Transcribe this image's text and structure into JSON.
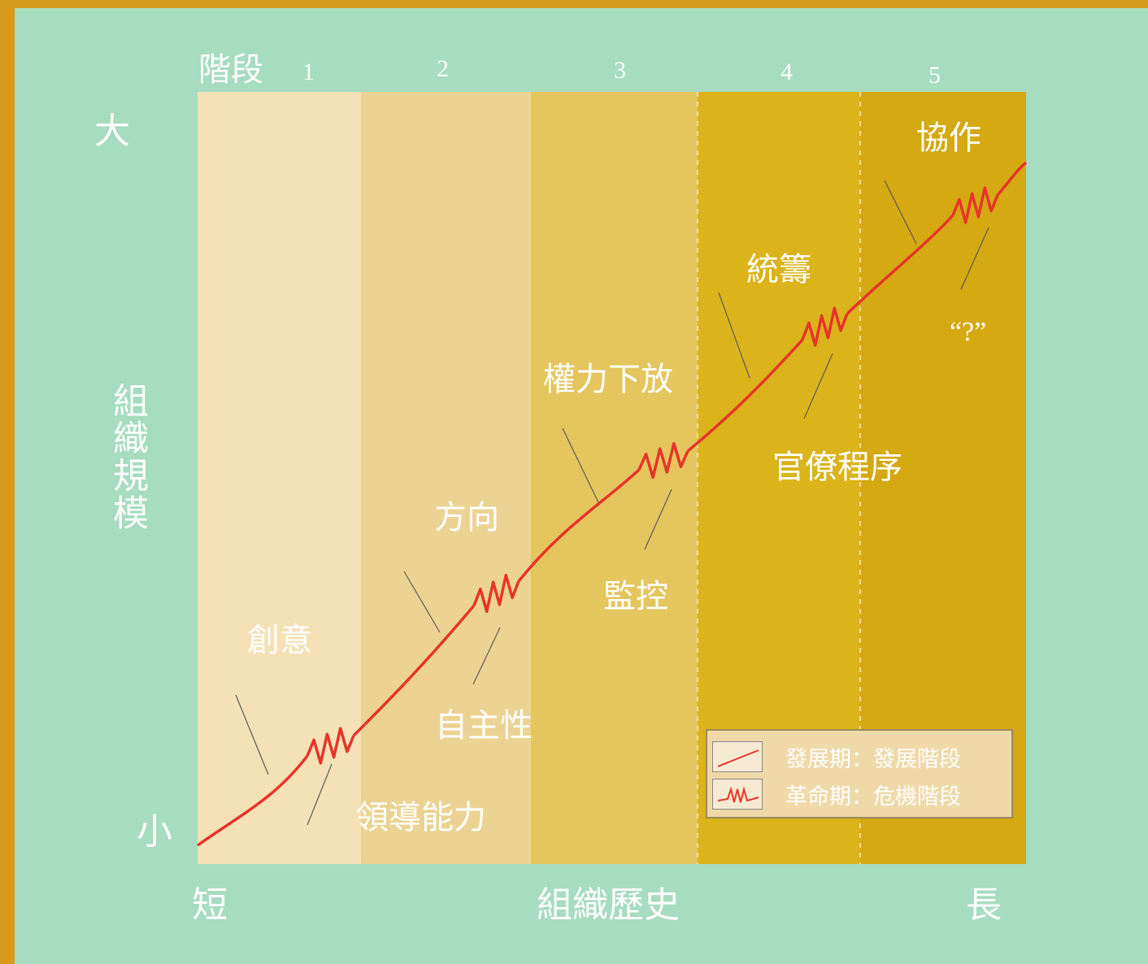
{
  "stage_label": "階段",
  "stages": [
    "1",
    "2",
    "3",
    "4",
    "5"
  ],
  "y_axis": {
    "label": "組織規模",
    "top": "大",
    "bottom": "小"
  },
  "x_axis": {
    "label": "組織歷史",
    "left": "短",
    "right": "長"
  },
  "phases": {
    "evolution": [
      "創意",
      "方向",
      "權力下放",
      "統籌",
      "協作"
    ],
    "revolution": [
      "領導能力",
      "自主性",
      "監控",
      "官僚程序",
      "“?”"
    ]
  },
  "legend": {
    "evolution": "發展期：發展階段",
    "revolution": "革命期：危機階段"
  },
  "colors": {
    "frame": "#d79a1c",
    "background": "#a6dcc0",
    "stage_bands": [
      "#f4e2b6",
      "#ecd393",
      "#e5c55e",
      "#dbb31a",
      "#d4a912"
    ],
    "growth_line": "#e8332a"
  }
}
